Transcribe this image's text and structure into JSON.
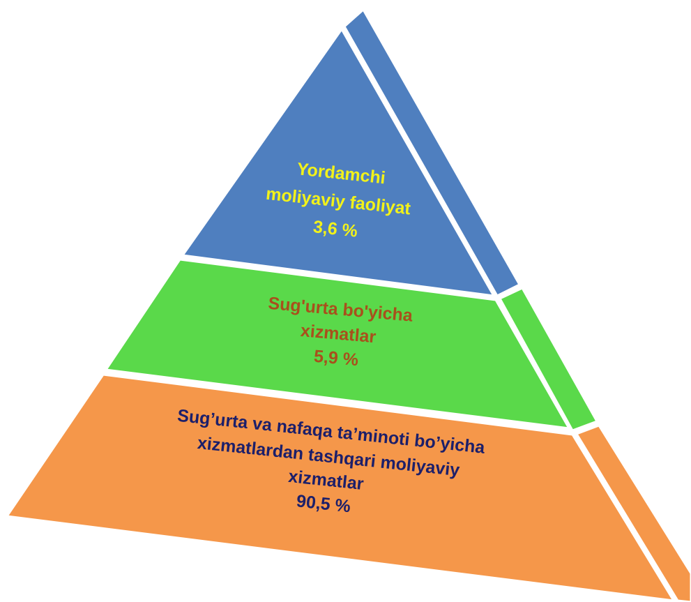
{
  "layers": [
    {
      "lines": [
        "Yordamchi",
        "moliyaviy faoliyat"
      ],
      "value": "3,6 %"
    },
    {
      "lines": [
        "Sug'urta bo'yicha",
        "xizmatlar"
      ],
      "value": "5,9 %"
    },
    {
      "lines": [
        "Sug’urta va nafaqa ta’minoti bo’yicha",
        "xizmatlardan tashqari moliyaviy",
        "xizmatlar"
      ],
      "value": "90,5 %"
    }
  ]
}
